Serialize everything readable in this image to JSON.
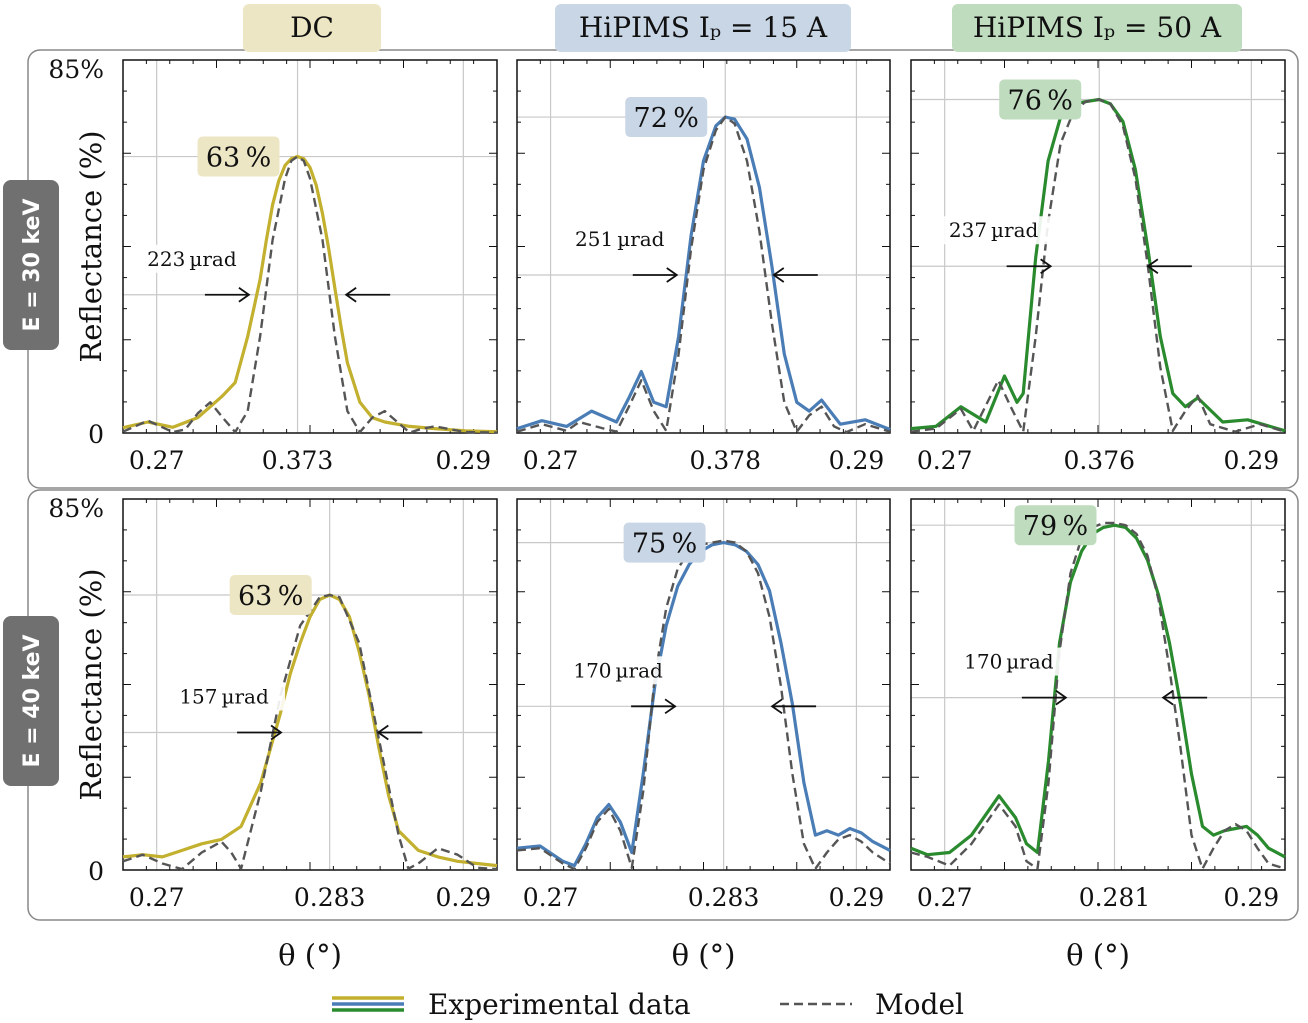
{
  "colors": {
    "dc": "#c2b02e",
    "hipims15": "#4a7db5",
    "hipims50": "#2a8a2e",
    "model": "#555555",
    "dc_bg": "#ede6c4",
    "hipims15_bg": "#c9d6e6",
    "hipims50_bg": "#bfdcbf",
    "row_label_bg": "#707070"
  },
  "columns": [
    {
      "title": "DC",
      "key": "dc"
    },
    {
      "title": "HiPIMS Iₚ = 15 A",
      "key": "hipims15"
    },
    {
      "title": "HiPIMS Iₚ = 50 A",
      "key": "hipims50"
    }
  ],
  "rows": [
    {
      "label": "E = 30 keV"
    },
    {
      "label": "E = 40 keV"
    }
  ],
  "ylabel": "Reflectance (%)",
  "xlabel": "θ (°)",
  "ytick_top": "85%",
  "ytick_bottom": "0",
  "legend": {
    "experimental": "Experimental data",
    "model": "Model"
  },
  "chart_data": [
    {
      "type": "line",
      "row": 0,
      "col": 0,
      "xticks": [
        "0.27",
        "0.373",
        "0.29"
      ],
      "xlim": [
        0.25,
        0.31
      ],
      "ylim": [
        0,
        85
      ],
      "peak_x": 0.278,
      "peak_label": "63 %",
      "fwhm_label": "223 µrad",
      "peak_value": 63,
      "series": [
        {
          "name": "Experimental data",
          "x": [
            0.25,
            0.254,
            0.258,
            0.262,
            0.264,
            0.266,
            0.268,
            0.27,
            0.272,
            0.273,
            0.274,
            0.275,
            0.276,
            0.277,
            0.278,
            0.279,
            0.28,
            0.281,
            0.282,
            0.283,
            0.284,
            0.285,
            0.286,
            0.288,
            0.29,
            0.292,
            0.296,
            0.3,
            0.305,
            0.31
          ],
          "y": [
            1.2,
            2.5,
            1.3,
            3.5,
            6.0,
            8.5,
            11.5,
            22.0,
            35.0,
            44.0,
            52.0,
            57.5,
            61.0,
            62.5,
            63.0,
            62.5,
            60.5,
            56.5,
            50.0,
            42.0,
            33.0,
            24.0,
            16.0,
            7.0,
            3.5,
            2.5,
            1.5,
            1.0,
            0.5,
            0.3
          ]
        },
        {
          "name": "Model",
          "x": [
            0.25,
            0.254,
            0.258,
            0.26,
            0.262,
            0.264,
            0.266,
            0.268,
            0.27,
            0.272,
            0.274,
            0.276,
            0.277,
            0.278,
            0.279,
            0.28,
            0.282,
            0.284,
            0.286,
            0.288,
            0.29,
            0.292,
            0.294,
            0.296,
            0.298,
            0.3,
            0.305,
            0.31
          ],
          "y": [
            0.3,
            2.8,
            0.2,
            0.8,
            4.5,
            7.0,
            3.5,
            0.2,
            5.0,
            22.0,
            44.0,
            58.0,
            62.0,
            63.0,
            62.0,
            58.0,
            44.0,
            22.0,
            5.0,
            0.2,
            3.5,
            5.0,
            2.5,
            0.1,
            1.0,
            1.5,
            0.2,
            0.1
          ]
        }
      ]
    },
    {
      "type": "line",
      "row": 0,
      "col": 1,
      "xticks": [
        "0.27",
        "0.378",
        "0.29"
      ],
      "xlim": [
        0.27,
        0.33
      ],
      "ylim": [
        0,
        85
      ],
      "peak_x": 0.3035,
      "peak_label": "72 %",
      "fwhm_label": "251 µrad",
      "peak_value": 72,
      "series": [
        {
          "name": "Experimental data",
          "x": [
            0.27,
            0.274,
            0.278,
            0.282,
            0.286,
            0.288,
            0.29,
            0.292,
            0.294,
            0.296,
            0.298,
            0.3,
            0.302,
            0.3035,
            0.305,
            0.307,
            0.309,
            0.311,
            0.313,
            0.315,
            0.317,
            0.319,
            0.322,
            0.326,
            0.33
          ],
          "y": [
            1.0,
            2.8,
            1.5,
            5.0,
            2.5,
            8.0,
            14.0,
            7.0,
            6.0,
            22.0,
            45.0,
            62.0,
            70.0,
            72.0,
            71.5,
            67.0,
            56.0,
            38.0,
            18.0,
            7.0,
            5.0,
            7.5,
            2.0,
            3.0,
            0.8
          ]
        },
        {
          "name": "Model",
          "x": [
            0.27,
            0.274,
            0.278,
            0.28,
            0.284,
            0.286,
            0.288,
            0.29,
            0.292,
            0.294,
            0.296,
            0.298,
            0.3,
            0.302,
            0.3035,
            0.305,
            0.307,
            0.309,
            0.311,
            0.313,
            0.315,
            0.317,
            0.319,
            0.321,
            0.323,
            0.326,
            0.33
          ],
          "y": [
            0.3,
            2.0,
            0.5,
            2.5,
            1.0,
            0.3,
            6.0,
            12.0,
            5.0,
            0.5,
            18.0,
            42.0,
            60.0,
            69.0,
            72.0,
            70.5,
            62.0,
            46.0,
            25.0,
            7.0,
            0.3,
            4.0,
            6.0,
            1.5,
            0.2,
            2.0,
            0.3
          ]
        }
      ]
    },
    {
      "type": "line",
      "row": 0,
      "col": 2,
      "xticks": [
        "0.27",
        "0.376",
        "0.29"
      ],
      "xlim": [
        0.27,
        0.33
      ],
      "ylim": [
        0,
        85
      ],
      "peak_x": 0.3002,
      "peak_label": "76 %",
      "fwhm_label": "237 µrad",
      "peak_value": 76,
      "series": [
        {
          "name": "Experimental data",
          "x": [
            0.27,
            0.274,
            0.278,
            0.282,
            0.285,
            0.287,
            0.288,
            0.29,
            0.292,
            0.294,
            0.296,
            0.298,
            0.3002,
            0.302,
            0.304,
            0.306,
            0.308,
            0.31,
            0.312,
            0.314,
            0.316,
            0.32,
            0.324,
            0.33
          ],
          "y": [
            1.0,
            1.5,
            6.0,
            2.5,
            13.0,
            7.0,
            9.0,
            40.0,
            62.0,
            72.0,
            75.0,
            75.5,
            76.0,
            75.0,
            71.0,
            60.0,
            42.0,
            22.0,
            9.0,
            6.0,
            8.0,
            2.5,
            3.0,
            0.5
          ]
        },
        {
          "name": "Model",
          "x": [
            0.27,
            0.274,
            0.278,
            0.28,
            0.284,
            0.286,
            0.288,
            0.29,
            0.292,
            0.294,
            0.296,
            0.298,
            0.3002,
            0.302,
            0.304,
            0.306,
            0.308,
            0.31,
            0.312,
            0.314,
            0.316,
            0.318,
            0.322,
            0.326,
            0.33
          ],
          "y": [
            0.3,
            1.0,
            5.5,
            0.5,
            12.0,
            6.0,
            0.3,
            22.0,
            48.0,
            66.0,
            73.0,
            75.5,
            76.0,
            75.0,
            70.0,
            58.0,
            38.0,
            15.0,
            0.5,
            5.0,
            8.5,
            2.0,
            0.3,
            2.0,
            0.3
          ]
        }
      ]
    },
    {
      "type": "line",
      "row": 1,
      "col": 0,
      "xticks": [
        "0.27",
        "0.283",
        "0.29"
      ],
      "xlim": [
        0.262,
        0.3
      ],
      "ylim": [
        0,
        85
      ],
      "peak_x": 0.283,
      "peak_label": "63 %",
      "fwhm_label": "157 µrad",
      "peak_value": 63,
      "series": [
        {
          "name": "Experimental data",
          "x": [
            0.262,
            0.264,
            0.266,
            0.268,
            0.27,
            0.272,
            0.274,
            0.276,
            0.278,
            0.279,
            0.28,
            0.281,
            0.282,
            0.283,
            0.284,
            0.285,
            0.286,
            0.287,
            0.288,
            0.289,
            0.29,
            0.292,
            0.294,
            0.296,
            0.298,
            0.3
          ],
          "y": [
            3.0,
            3.5,
            3.0,
            4.5,
            6.0,
            7.0,
            10.0,
            20.0,
            36.0,
            45.0,
            52.0,
            58.0,
            62.0,
            63.0,
            62.0,
            58.0,
            50.0,
            40.0,
            28.0,
            17.0,
            9.0,
            4.5,
            3.0,
            2.0,
            1.5,
            1.0
          ]
        },
        {
          "name": "Model",
          "x": [
            0.262,
            0.264,
            0.266,
            0.268,
            0.27,
            0.272,
            0.273,
            0.274,
            0.276,
            0.278,
            0.28,
            0.282,
            0.283,
            0.284,
            0.286,
            0.288,
            0.29,
            0.291,
            0.292,
            0.294,
            0.296,
            0.298,
            0.3
          ],
          "y": [
            2.0,
            3.5,
            1.5,
            0.2,
            4.0,
            6.5,
            4.0,
            0.3,
            18.0,
            40.0,
            56.0,
            62.5,
            63.0,
            62.5,
            52.0,
            30.0,
            8.0,
            0.3,
            1.5,
            5.0,
            3.5,
            0.5,
            0.2
          ]
        }
      ]
    },
    {
      "type": "line",
      "row": 1,
      "col": 1,
      "xticks": [
        "0.27",
        "0.283",
        "0.29"
      ],
      "xlim": [
        0.265,
        0.2975
      ],
      "ylim": [
        0,
        85
      ],
      "peak_x": 0.283,
      "peak_label": "75 %",
      "fwhm_label": "170 µrad",
      "peak_value": 75,
      "series": [
        {
          "name": "Experimental data",
          "x": [
            0.265,
            0.267,
            0.269,
            0.27,
            0.271,
            0.272,
            0.273,
            0.274,
            0.275,
            0.276,
            0.277,
            0.278,
            0.279,
            0.28,
            0.281,
            0.282,
            0.283,
            0.284,
            0.285,
            0.286,
            0.287,
            0.288,
            0.289,
            0.29,
            0.291,
            0.292,
            0.293,
            0.294,
            0.295,
            0.296,
            0.2975
          ],
          "y": [
            5.0,
            5.5,
            2.0,
            1.0,
            6.0,
            12.0,
            15.0,
            11.0,
            4.0,
            22.0,
            42.0,
            56.0,
            65.0,
            70.0,
            73.0,
            74.5,
            75.0,
            74.5,
            73.0,
            70.0,
            64.0,
            52.0,
            38.0,
            20.0,
            8.0,
            9.0,
            8.0,
            9.5,
            8.5,
            6.5,
            4.5
          ]
        },
        {
          "name": "Model",
          "x": [
            0.265,
            0.267,
            0.269,
            0.27,
            0.271,
            0.272,
            0.273,
            0.274,
            0.275,
            0.276,
            0.277,
            0.278,
            0.279,
            0.28,
            0.281,
            0.282,
            0.283,
            0.284,
            0.285,
            0.286,
            0.287,
            0.288,
            0.289,
            0.29,
            0.291,
            0.292,
            0.293,
            0.294,
            0.295,
            0.296,
            0.2975
          ],
          "y": [
            4.5,
            5.0,
            1.5,
            0.2,
            5.0,
            11.0,
            14.0,
            9.0,
            0.5,
            18.0,
            44.0,
            60.0,
            69.0,
            73.0,
            74.5,
            75.0,
            75.5,
            75.0,
            73.0,
            68.0,
            58.0,
            42.0,
            22.0,
            6.0,
            0.3,
            4.0,
            7.0,
            8.0,
            6.5,
            4.0,
            1.5
          ]
        }
      ]
    },
    {
      "type": "line",
      "row": 1,
      "col": 2,
      "xticks": [
        "0.27",
        "0.281",
        "0.29"
      ],
      "xlim": [
        0.2625,
        0.2965
      ],
      "ylim": [
        0,
        85
      ],
      "peak_x": 0.281,
      "peak_label": "79 %",
      "fwhm_label": "170 µrad",
      "peak_value": 79,
      "series": [
        {
          "name": "Experimental data",
          "x": [
            0.2625,
            0.264,
            0.266,
            0.268,
            0.2705,
            0.272,
            0.273,
            0.274,
            0.275,
            0.276,
            0.277,
            0.278,
            0.279,
            0.28,
            0.281,
            0.282,
            0.283,
            0.284,
            0.285,
            0.286,
            0.287,
            0.288,
            0.289,
            0.29,
            0.291,
            0.292,
            0.293,
            0.294,
            0.295,
            0.2965
          ],
          "y": [
            5.0,
            3.5,
            4.0,
            8.0,
            17.0,
            12.0,
            6.0,
            4.0,
            25.0,
            52.0,
            66.0,
            73.0,
            77.0,
            78.5,
            79.0,
            78.5,
            76.0,
            71.0,
            63.0,
            52.0,
            38.0,
            22.0,
            10.0,
            8.0,
            9.0,
            9.5,
            10.0,
            8.0,
            5.0,
            3.0
          ]
        },
        {
          "name": "Model",
          "x": [
            0.2625,
            0.264,
            0.266,
            0.268,
            0.2705,
            0.272,
            0.273,
            0.274,
            0.275,
            0.276,
            0.277,
            0.278,
            0.279,
            0.28,
            0.281,
            0.282,
            0.283,
            0.284,
            0.285,
            0.286,
            0.287,
            0.288,
            0.289,
            0.29,
            0.291,
            0.292,
            0.293,
            0.294,
            0.295,
            0.2965
          ],
          "y": [
            4.0,
            3.0,
            1.0,
            6.0,
            15.0,
            10.0,
            2.0,
            0.3,
            20.0,
            50.0,
            68.0,
            76.0,
            78.5,
            79.5,
            79.5,
            79.0,
            77.0,
            72.0,
            62.0,
            46.0,
            28.0,
            8.0,
            0.3,
            5.0,
            9.0,
            10.5,
            9.0,
            5.0,
            1.5,
            0.3
          ]
        }
      ]
    }
  ]
}
